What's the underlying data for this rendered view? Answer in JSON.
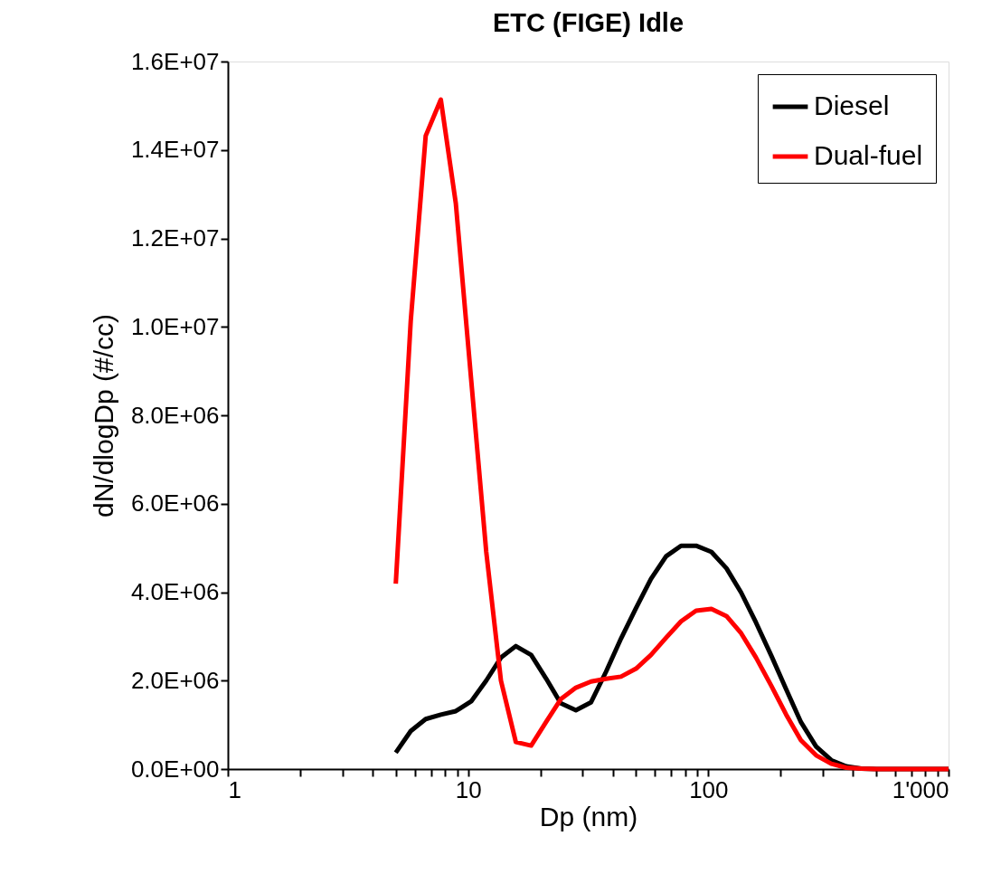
{
  "chart_data": {
    "type": "line",
    "title": "ETC (FIGE) Idle",
    "xlabel": "Dp (nm)",
    "ylabel": "dN/dlogDp (#/cc)",
    "log": "x",
    "grid": false,
    "legend": "top right",
    "marker": "none",
    "line_style": "solid",
    "x": [
      5,
      5.77,
      6.66,
      7.7,
      8.89,
      10.3,
      11.9,
      13.7,
      15.8,
      18.3,
      21.1,
      24.3,
      28.1,
      32.5,
      37.5,
      43.3,
      50,
      57.7,
      66.7,
      77,
      88.9,
      103,
      119,
      137,
      158,
      183,
      211,
      243,
      281,
      325,
      375,
      433,
      500,
      577,
      667,
      770,
      889,
      1000
    ],
    "series": [
      {
        "name": "Diesel",
        "color": "#000000",
        "values": [
          370000,
          860000,
          1130000,
          1230000,
          1310000,
          1530000,
          2000000,
          2520000,
          2780000,
          2580000,
          2050000,
          1490000,
          1330000,
          1510000,
          2200000,
          2950000,
          3640000,
          4300000,
          4810000,
          5050000,
          5050000,
          4910000,
          4540000,
          3990000,
          3310000,
          2560000,
          1800000,
          1060000,
          510000,
          200000,
          60000,
          10000,
          0,
          0,
          0,
          0,
          0,
          0
        ]
      },
      {
        "name": "Dual-fuel",
        "color": "#ff0000",
        "values": [
          4190000,
          10130000,
          14320000,
          15140000,
          12790000,
          8800000,
          4910000,
          2000000,
          610000,
          530000,
          1060000,
          1580000,
          1840000,
          1980000,
          2040000,
          2090000,
          2270000,
          2580000,
          2970000,
          3340000,
          3580000,
          3620000,
          3460000,
          3070000,
          2520000,
          1880000,
          1230000,
          650000,
          310000,
          120000,
          30000,
          10000,
          0,
          0,
          0,
          0,
          0,
          0
        ]
      }
    ],
    "xlim": [
      1,
      1000
    ],
    "xticks": [
      1,
      {
        "value": 2,
        "label": null
      },
      {
        "value": 3,
        "label": null
      },
      {
        "value": 4,
        "label": null
      },
      {
        "value": 5,
        "label": null
      },
      {
        "value": 6,
        "label": null
      },
      {
        "value": 7,
        "label": null
      },
      {
        "value": 8,
        "label": null
      },
      {
        "value": 9,
        "label": null
      },
      10,
      {
        "value": 20,
        "label": null
      },
      {
        "value": 30,
        "label": null
      },
      {
        "value": 40,
        "label": null
      },
      {
        "value": 50,
        "label": null
      },
      {
        "value": 60,
        "label": null
      },
      {
        "value": 70,
        "label": null
      },
      {
        "value": 80,
        "label": null
      },
      {
        "value": 90,
        "label": null
      },
      100,
      {
        "value": 200,
        "label": null
      },
      {
        "value": 300,
        "label": null
      },
      {
        "value": 400,
        "label": null
      },
      {
        "value": 500,
        "label": null
      },
      {
        "value": 600,
        "label": null
      },
      {
        "value": 700,
        "label": null
      },
      {
        "value": 800,
        "label": null
      },
      {
        "value": 900,
        "label": null
      },
      {
        "value": 1000,
        "label": "1'000"
      }
    ],
    "ylim": [
      0,
      16000000
    ],
    "yticks": [
      {
        "value": 0,
        "label": "0.0E+00"
      },
      {
        "value": 2000000,
        "label": "2.0E+06"
      },
      {
        "value": 4000000,
        "label": "4.0E+06"
      },
      {
        "value": 6000000,
        "label": "6.0E+06"
      },
      {
        "value": 8000000,
        "label": "8.0E+06"
      },
      {
        "value": 10000000,
        "label": "1.0E+07"
      },
      {
        "value": 12000000,
        "label": "1.2E+07"
      },
      {
        "value": 14000000,
        "label": "1.4E+07"
      },
      {
        "value": 16000000,
        "label": "1.6E+07"
      }
    ]
  }
}
